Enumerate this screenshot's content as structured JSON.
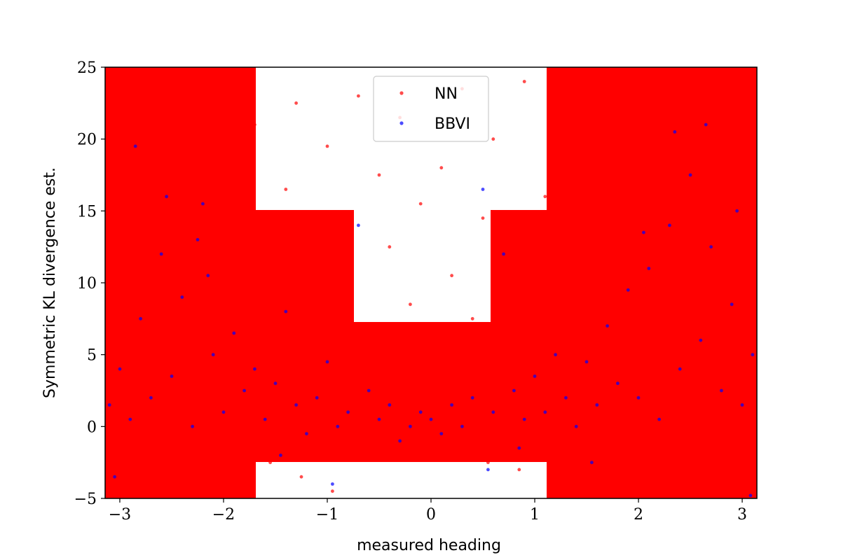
{
  "chart_data": {
    "type": "scatter",
    "title": "",
    "xlabel": "measured heading",
    "ylabel": "Symmetric KL divergence est.",
    "xlim": [
      -3.1416,
      3.1416
    ],
    "ylim": [
      -5,
      25
    ],
    "grid": false,
    "legend_position": "top-center",
    "x_ticks": [
      {
        "value": -3,
        "label": "−3"
      },
      {
        "value": -2,
        "label": "−2"
      },
      {
        "value": -1,
        "label": "−1"
      },
      {
        "value": 0,
        "label": "0"
      },
      {
        "value": 1,
        "label": "1"
      },
      {
        "value": 2,
        "label": "2"
      },
      {
        "value": 3,
        "label": "3"
      }
    ],
    "y_ticks": [
      {
        "value": -5,
        "label": "−5"
      },
      {
        "value": 0,
        "label": "0"
      },
      {
        "value": 5,
        "label": "5"
      },
      {
        "value": 10,
        "label": "10"
      },
      {
        "value": 15,
        "label": "15"
      },
      {
        "value": 20,
        "label": "20"
      },
      {
        "value": 25,
        "label": "25"
      }
    ],
    "series": [
      {
        "name": "NN",
        "color": "#ff0000",
        "points": [
          [
            -3.1,
            24.0
          ],
          [
            -3.0,
            18.5
          ],
          [
            -2.9,
            12.0
          ],
          [
            -2.8,
            22.0
          ],
          [
            -2.7,
            6.5
          ],
          [
            -2.6,
            15.0
          ],
          [
            -2.5,
            9.0
          ],
          [
            -2.4,
            20.5
          ],
          [
            -2.3,
            3.0
          ],
          [
            -2.2,
            11.5
          ],
          [
            -2.1,
            17.0
          ],
          [
            -2.0,
            24.5
          ],
          [
            -1.9,
            7.0
          ],
          [
            -1.8,
            13.5
          ],
          [
            -1.7,
            21.0
          ],
          [
            -1.6,
            4.5
          ],
          [
            -1.5,
            10.0
          ],
          [
            -1.4,
            16.5
          ],
          [
            -1.3,
            22.5
          ],
          [
            -1.2,
            8.0
          ],
          [
            -1.1,
            14.0
          ],
          [
            -1.0,
            19.5
          ],
          [
            -0.9,
            2.5
          ],
          [
            -0.8,
            11.0
          ],
          [
            -0.7,
            23.0
          ],
          [
            -0.6,
            6.0
          ],
          [
            -0.5,
            17.5
          ],
          [
            -0.4,
            12.5
          ],
          [
            -0.3,
            21.5
          ],
          [
            -0.2,
            8.5
          ],
          [
            -0.1,
            15.5
          ],
          [
            0.0,
            5.0
          ],
          [
            0.1,
            18.0
          ],
          [
            0.2,
            10.5
          ],
          [
            0.3,
            23.5
          ],
          [
            0.4,
            7.5
          ],
          [
            0.5,
            14.5
          ],
          [
            0.6,
            20.0
          ],
          [
            0.7,
            3.5
          ],
          [
            0.8,
            12.0
          ],
          [
            0.9,
            24.0
          ],
          [
            1.0,
            9.5
          ],
          [
            1.1,
            16.0
          ],
          [
            1.2,
            21.5
          ],
          [
            1.3,
            5.5
          ],
          [
            1.4,
            13.0
          ],
          [
            1.5,
            19.0
          ],
          [
            1.6,
            24.5
          ],
          [
            1.7,
            8.0
          ],
          [
            1.8,
            15.0
          ],
          [
            1.9,
            22.0
          ],
          [
            2.0,
            6.5
          ],
          [
            2.1,
            11.5
          ],
          [
            2.2,
            18.5
          ],
          [
            2.3,
            24.0
          ],
          [
            2.4,
            4.0
          ],
          [
            2.5,
            14.0
          ],
          [
            2.6,
            20.5
          ],
          [
            2.7,
            9.0
          ],
          [
            2.8,
            16.5
          ],
          [
            2.9,
            23.0
          ],
          [
            3.0,
            7.0
          ],
          [
            3.1,
            12.5
          ],
          [
            -3.05,
            -1.5
          ],
          [
            -2.75,
            -3.0
          ],
          [
            -2.45,
            -2.0
          ],
          [
            -2.15,
            -4.0
          ],
          [
            -1.85,
            -1.0
          ],
          [
            -1.55,
            -2.5
          ],
          [
            -1.25,
            -3.5
          ],
          [
            -0.95,
            -4.5
          ],
          [
            -0.65,
            -2.0
          ],
          [
            -0.35,
            -1.5
          ],
          [
            -0.05,
            -0.5
          ],
          [
            0.25,
            -1.0
          ],
          [
            0.55,
            -2.5
          ],
          [
            0.85,
            -3.0
          ],
          [
            1.15,
            -1.5
          ],
          [
            1.45,
            -3.5
          ],
          [
            1.75,
            -2.0
          ],
          [
            2.05,
            -4.0
          ],
          [
            2.35,
            -2.5
          ],
          [
            2.65,
            -3.5
          ],
          [
            2.95,
            -1.0
          ],
          [
            -2.95,
            1.5
          ],
          [
            -2.35,
            0.5
          ],
          [
            -1.75,
            2.0
          ],
          [
            -1.15,
            1.0
          ],
          [
            -0.55,
            3.0
          ],
          [
            0.05,
            2.5
          ],
          [
            0.65,
            1.5
          ],
          [
            1.25,
            0.5
          ],
          [
            1.85,
            2.0
          ],
          [
            2.45,
            1.0
          ],
          [
            3.05,
            3.5
          ]
        ]
      },
      {
        "name": "BBVI",
        "color": "#0000ff",
        "points": [
          [
            -3.1,
            1.5
          ],
          [
            -3.0,
            4.0
          ],
          [
            -2.9,
            0.5
          ],
          [
            -2.8,
            7.5
          ],
          [
            -2.7,
            2.0
          ],
          [
            -2.6,
            12.0
          ],
          [
            -2.5,
            3.5
          ],
          [
            -2.4,
            9.0
          ],
          [
            -2.3,
            0.0
          ],
          [
            -2.2,
            15.5
          ],
          [
            -2.1,
            5.0
          ],
          [
            -2.0,
            1.0
          ],
          [
            -1.9,
            6.5
          ],
          [
            -1.8,
            2.5
          ],
          [
            -1.7,
            4.0
          ],
          [
            -1.6,
            0.5
          ],
          [
            -1.5,
            3.0
          ],
          [
            -1.4,
            8.0
          ],
          [
            -1.3,
            1.5
          ],
          [
            -1.2,
            -0.5
          ],
          [
            -1.1,
            2.0
          ],
          [
            -1.0,
            4.5
          ],
          [
            -0.9,
            0.0
          ],
          [
            -0.8,
            1.0
          ],
          [
            -0.7,
            14.0
          ],
          [
            -0.6,
            2.5
          ],
          [
            -0.5,
            0.5
          ],
          [
            -0.4,
            1.5
          ],
          [
            -0.3,
            -1.0
          ],
          [
            -0.2,
            0.0
          ],
          [
            -0.1,
            1.0
          ],
          [
            0.0,
            0.5
          ],
          [
            0.1,
            -0.5
          ],
          [
            0.2,
            1.5
          ],
          [
            0.3,
            0.0
          ],
          [
            0.4,
            2.0
          ],
          [
            0.5,
            16.5
          ],
          [
            0.6,
            1.0
          ],
          [
            0.7,
            12.0
          ],
          [
            0.8,
            2.5
          ],
          [
            0.9,
            0.5
          ],
          [
            1.0,
            3.5
          ],
          [
            1.1,
            1.0
          ],
          [
            1.2,
            5.0
          ],
          [
            1.3,
            2.0
          ],
          [
            1.4,
            0.0
          ],
          [
            1.5,
            4.5
          ],
          [
            1.6,
            1.5
          ],
          [
            1.7,
            7.0
          ],
          [
            1.8,
            3.0
          ],
          [
            1.9,
            9.5
          ],
          [
            2.0,
            2.0
          ],
          [
            2.1,
            11.0
          ],
          [
            2.2,
            0.5
          ],
          [
            2.3,
            14.0
          ],
          [
            2.4,
            4.0
          ],
          [
            2.5,
            17.5
          ],
          [
            2.6,
            6.0
          ],
          [
            2.7,
            12.5
          ],
          [
            2.8,
            2.5
          ],
          [
            2.9,
            8.5
          ],
          [
            3.0,
            1.5
          ],
          [
            3.1,
            5.0
          ],
          [
            -2.85,
            19.5
          ],
          [
            -2.55,
            16.0
          ],
          [
            -2.25,
            13.0
          ],
          [
            2.35,
            20.5
          ],
          [
            2.65,
            21.0
          ],
          [
            2.95,
            15.0
          ],
          [
            -0.95,
            -4.0
          ],
          [
            0.55,
            -3.0
          ],
          [
            1.55,
            -2.5
          ],
          [
            3.08,
            -4.8
          ],
          [
            -3.05,
            -3.5
          ],
          [
            -1.45,
            -2.0
          ],
          [
            0.85,
            -1.5
          ],
          [
            -2.15,
            10.5
          ],
          [
            2.05,
            13.5
          ]
        ]
      }
    ]
  }
}
